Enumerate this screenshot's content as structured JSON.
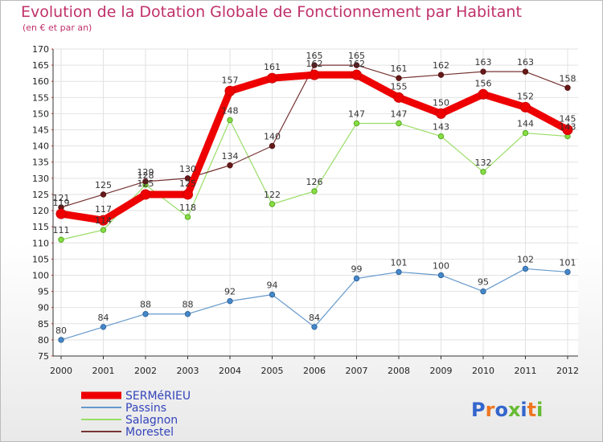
{
  "chart_data": {
    "type": "line",
    "title": "Evolution de la Dotation Globale de Fonctionnement par Habitant",
    "subtitle": "(en € et par an)",
    "x": [
      "2000",
      "2001",
      "2002",
      "2003",
      "2004",
      "2005",
      "2006",
      "2007",
      "2008",
      "2009",
      "2010",
      "2011",
      "2012"
    ],
    "ylim": [
      75,
      170
    ],
    "yticks": [
      75,
      80,
      85,
      90,
      95,
      100,
      105,
      110,
      115,
      120,
      125,
      130,
      135,
      140,
      145,
      150,
      155,
      160,
      165,
      170
    ],
    "grid": true,
    "legend_position": "bottom-left",
    "series": [
      {
        "name": "SERMéRIEU",
        "color": "#ee0000",
        "values": [
          119,
          117,
          125,
          125,
          157,
          161,
          162,
          162,
          155,
          150,
          156,
          152,
          145
        ]
      },
      {
        "name": "Passins",
        "color": "#6699cc",
        "values": [
          80,
          84,
          88,
          88,
          92,
          94,
          84,
          99,
          101,
          100,
          95,
          102,
          101
        ]
      },
      {
        "name": "Salagnon",
        "color": "#99dd66",
        "values": [
          111,
          114,
          128,
          118,
          148,
          122,
          126,
          147,
          147,
          143,
          132,
          144,
          143
        ]
      },
      {
        "name": "Morestel",
        "color": "#773333",
        "values": [
          121,
          125,
          129,
          130,
          134,
          140,
          165,
          165,
          161,
          162,
          163,
          163,
          158
        ]
      }
    ],
    "logo_text": "Proxiti"
  }
}
